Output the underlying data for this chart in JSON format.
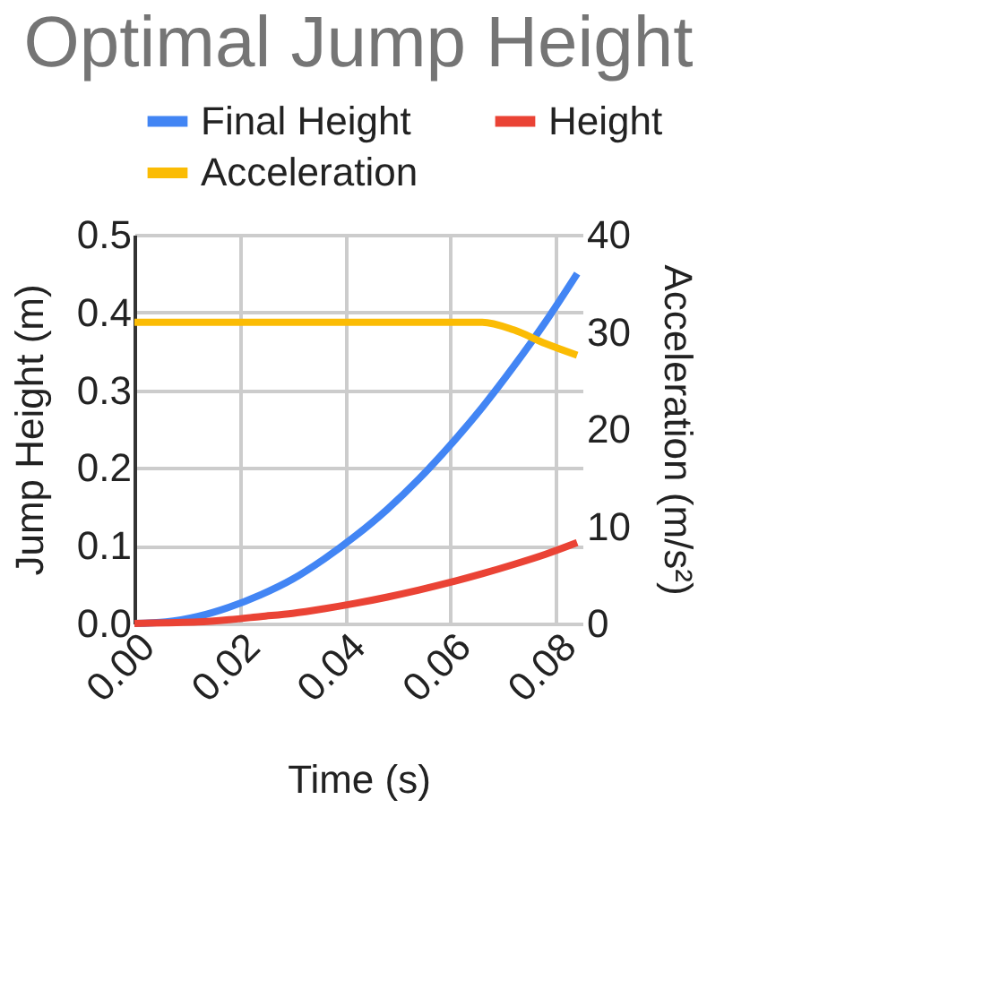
{
  "chart_data": {
    "type": "line",
    "title": "Optimal Jump Height",
    "xlabel": "Time (s)",
    "ylabel": "Jump Height (m)",
    "y2label": "Acceleration (m/s²)",
    "x": [
      0,
      0.006,
      0.012,
      0.018,
      0.024,
      0.03,
      0.036,
      0.042,
      0.048,
      0.054,
      0.06,
      0.066,
      0.072,
      0.078,
      0.084
    ],
    "series": [
      {
        "name": "Final Height",
        "color": "#4285f4",
        "values": [
          0,
          0.002,
          0.009,
          0.021,
          0.037,
          0.057,
          0.083,
          0.113,
          0.147,
          0.186,
          0.23,
          0.278,
          0.331,
          0.388,
          0.45
        ]
      },
      {
        "name": "Height",
        "color": "#ea4335",
        "values": [
          0,
          0.001,
          0.002,
          0.005,
          0.009,
          0.013,
          0.019,
          0.026,
          0.034,
          0.043,
          0.053,
          0.064,
          0.076,
          0.089,
          0.104
        ]
      },
      {
        "name": "Acceleration",
        "color": "#fbbc04",
        "axis": "y2",
        "values": [
          31,
          31,
          31,
          31,
          31,
          31,
          31,
          31,
          31,
          31,
          31,
          31,
          30.2,
          28.8,
          27.6
        ]
      }
    ],
    "xlim": [
      0,
      0.085
    ],
    "xticks": [
      {
        "value": 0,
        "label": "0.00"
      },
      {
        "value": 0.02,
        "label": "0.02"
      },
      {
        "value": 0.04,
        "label": "0.04"
      },
      {
        "value": 0.06,
        "label": "0.06"
      },
      {
        "value": 0.08,
        "label": "0.08"
      }
    ],
    "ylim": [
      0,
      0.5
    ],
    "yticks": [
      {
        "value": 0,
        "label": "0.0"
      },
      0.1,
      0.2,
      0.3,
      0.4,
      0.5
    ],
    "y2lim": [
      0,
      40
    ],
    "y2ticks": [
      0,
      10,
      20,
      30,
      40
    ],
    "grid": true,
    "legend": "top",
    "marker": "none",
    "line_style": "solid"
  }
}
